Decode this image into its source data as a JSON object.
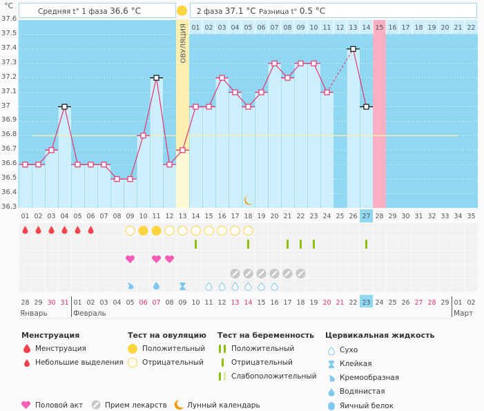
{
  "header": {
    "unit": "°C",
    "phase1_label": "Средняя t° 1 фаза",
    "phase1_value": "36.6 °C",
    "phase2_label": "2 фаза",
    "phase2_value": "37.1 °C",
    "diff_label": "Разница t°",
    "diff_value": "0.5 °C",
    "ovulation_label": "ОВУЛЯЦИЯ"
  },
  "colors": {
    "background": "#90d8f2",
    "bar": "#cdeefb",
    "ovulation_band": "#fdefb0",
    "predicted_period": "#fbafc2",
    "line": "#e8336c",
    "coverline": "#f5efb5",
    "today": "#90d8f2",
    "weekend_date": "#e5336c"
  },
  "chart_data": {
    "type": "line",
    "title": "Basal body temperature chart",
    "ylabel": "°C",
    "ylim": [
      36.3,
      37.6
    ],
    "yticks": [
      "37.6",
      "37.5",
      "37.4",
      "37.3",
      "37.2",
      "37.1",
      "37",
      "36.9",
      "36.8",
      "36.7",
      "36.6",
      "36.5",
      "36.4",
      "36.3"
    ],
    "cycle_days": [
      "01",
      "02",
      "03",
      "04",
      "05",
      "06",
      "07",
      "08",
      "09",
      "10",
      "11",
      "12",
      "13",
      "14",
      "15",
      "16",
      "17",
      "18",
      "19",
      "20",
      "21",
      "22",
      "23",
      "24",
      "25",
      "26",
      "27",
      "28",
      "29",
      "30",
      "31",
      "32",
      "33",
      "34",
      "35"
    ],
    "post_ovulation_days": [
      "01",
      "02",
      "03",
      "04",
      "05",
      "06",
      "07",
      "08",
      "09",
      "10",
      "11",
      "12",
      "13",
      "14",
      "15",
      "16",
      "17",
      "18",
      "19",
      "20",
      "21",
      "22"
    ],
    "temperatures": [
      36.6,
      36.6,
      36.7,
      37.0,
      36.6,
      36.6,
      36.6,
      36.5,
      36.5,
      36.8,
      37.2,
      36.6,
      36.7,
      37.0,
      37.0,
      37.2,
      37.1,
      37.0,
      37.1,
      37.3,
      37.2,
      37.3,
      37.3,
      37.1,
      null,
      37.4,
      37.0,
      null,
      null,
      null,
      null,
      null,
      null,
      null,
      null
    ],
    "excluded_points_days": [
      4,
      11,
      26,
      27
    ],
    "dashed_segment": [
      24,
      26
    ],
    "coverline": 36.8,
    "ovulation_day": 13,
    "predicted_period_day": 28,
    "today_day": 27,
    "dates": [
      "28",
      "29",
      "30",
      "31",
      "01",
      "02",
      "03",
      "04",
      "05",
      "06",
      "07",
      "08",
      "09",
      "10",
      "11",
      "12",
      "13",
      "14",
      "15",
      "16",
      "17",
      "18",
      "19",
      "20",
      "21",
      "22",
      "23",
      "24",
      "25",
      "26",
      "27",
      "28",
      "29",
      "01",
      "02"
    ],
    "weekend_date_indices": [
      2,
      3,
      9,
      10,
      16,
      17,
      23,
      24,
      30,
      31
    ],
    "months": [
      {
        "label": "Январь",
        "start_index": 0
      },
      {
        "label": "Февраль",
        "start_index": 4
      },
      {
        "label": "Март",
        "start_index": 33
      }
    ],
    "moon_day": 18
  },
  "rows": {
    "menstruation_days": [
      1,
      2,
      3,
      4,
      5,
      6
    ],
    "ovulation_test": {
      "positive": [
        10,
        11
      ],
      "negative": [
        9,
        12,
        13,
        14,
        15,
        16,
        17,
        18
      ]
    },
    "pregnancy_test_negative": [
      14,
      18,
      21,
      22,
      23,
      27
    ],
    "intercourse_days": [
      9,
      11,
      12
    ],
    "medication_days": [
      17,
      18,
      19,
      20,
      21,
      22
    ],
    "cervical": {
      "creamy": [
        9
      ],
      "watery": [
        11
      ],
      "sticky": [
        13
      ],
      "dry": [
        15,
        16,
        17,
        18,
        19,
        20
      ]
    }
  },
  "legend": {
    "menstruation": {
      "title": "Менструация",
      "items": [
        "Менструация",
        "Небольшие выделения"
      ]
    },
    "ovulation_test": {
      "title": "Тест на овуляцию",
      "items": [
        "Положительный",
        "Отрицательный"
      ]
    },
    "pregnancy_test": {
      "title": "Тест на беременность",
      "items": [
        "Положительный",
        "Отрицательный",
        "Слабоположительный"
      ]
    },
    "cervical": {
      "title": "Цервикальная жидкость",
      "items": [
        "Сухо",
        "Клейкая",
        "Кремообразная",
        "Водянистая",
        "Яичный белок"
      ]
    },
    "other": [
      "Половой акт",
      "Прием лекарств",
      "Лунный календарь"
    ]
  }
}
